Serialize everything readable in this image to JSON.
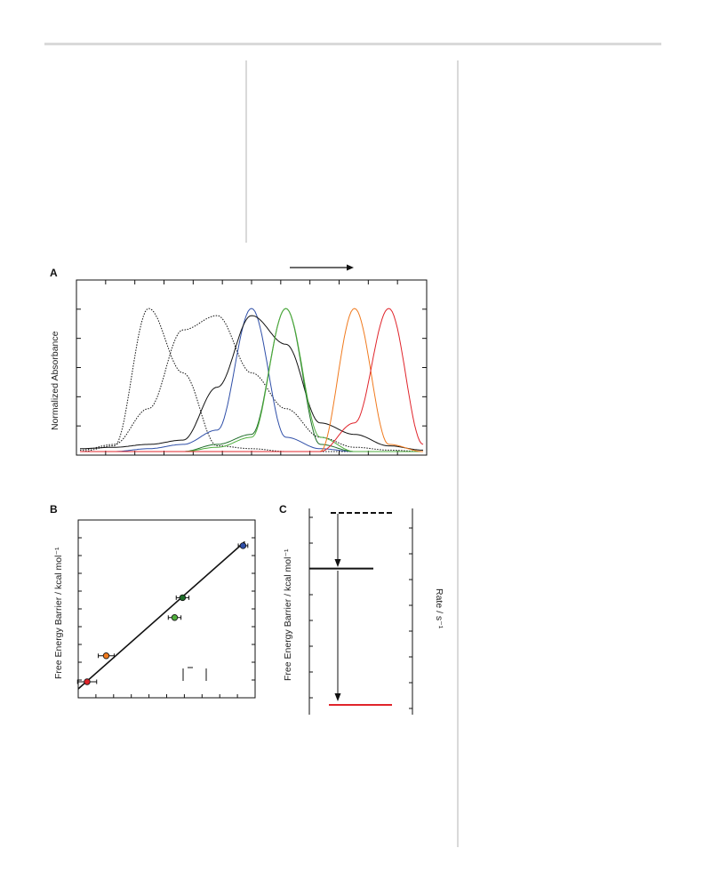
{
  "panels": {
    "A": {
      "letter": "A",
      "ylabel": "Normalized Absorbance"
    },
    "B": {
      "letter": "B",
      "ylabel": "Free Energy Barrier / kcal mol⁻¹"
    },
    "C": {
      "letter": "C",
      "ylabel_left": "Free Energy Barrier / kcal mol⁻¹",
      "ylabel_right": "Rate / s⁻¹"
    }
  },
  "colors": {
    "black": "#111111",
    "blue": "#2f4fa8",
    "dark_green": "#1f6e2a",
    "green": "#4fae3c",
    "orange": "#f07a1e",
    "red": "#e0242b",
    "rule": "#d9d9d9"
  },
  "chart_data": [
    {
      "panel": "A",
      "type": "line",
      "title": "",
      "xlabel": "",
      "ylabel": "Normalized Absorbance",
      "ylim": [
        0,
        1
      ],
      "x": [
        0,
        10,
        20,
        30,
        40,
        50,
        60,
        70,
        80,
        90,
        100
      ],
      "series": [
        {
          "color": "#111111",
          "style": "dotted",
          "values": [
            0.0,
            0.04,
            1.0,
            0.55,
            0.04,
            0.02,
            0.0,
            0.0,
            0.0,
            0.0,
            0.0
          ]
        },
        {
          "color": "#111111",
          "style": "dotted",
          "values": [
            0.01,
            0.05,
            0.3,
            0.85,
            0.95,
            0.55,
            0.3,
            0.1,
            0.03,
            0.01,
            0.0
          ]
        },
        {
          "color": "#2f4fa8",
          "style": "solid",
          "values": [
            0.0,
            0.0,
            0.02,
            0.05,
            0.15,
            1.0,
            0.1,
            0.02,
            0.0,
            0.0,
            0.0
          ]
        },
        {
          "color": "#111111",
          "style": "solid",
          "values": [
            0.02,
            0.03,
            0.05,
            0.08,
            0.45,
            0.95,
            0.75,
            0.2,
            0.12,
            0.04,
            0.01
          ]
        },
        {
          "color": "#1f6e2a",
          "style": "solid",
          "values": [
            0.0,
            0.0,
            0.0,
            0.0,
            0.05,
            0.12,
            1.0,
            0.05,
            0.0,
            0.0,
            0.0
          ]
        },
        {
          "color": "#4fae3c",
          "style": "solid",
          "values": [
            0.0,
            0.0,
            0.0,
            0.0,
            0.03,
            0.1,
            1.0,
            0.1,
            0.0,
            0.0,
            0.0
          ]
        },
        {
          "color": "#f07a1e",
          "style": "solid",
          "values": [
            0.0,
            0.0,
            0.0,
            0.0,
            0.0,
            0.0,
            0.0,
            0.0,
            1.0,
            0.05,
            0.0
          ]
        },
        {
          "color": "#e0242b",
          "style": "solid",
          "values": [
            0.0,
            0.0,
            0.0,
            0.0,
            0.0,
            0.0,
            0.0,
            0.0,
            0.2,
            1.0,
            0.05
          ]
        }
      ]
    },
    {
      "panel": "B",
      "type": "scatter",
      "title": "",
      "xlabel": "",
      "ylabel": "Free Energy Barrier / kcal mol⁻¹",
      "points": [
        {
          "color": "#e0242b",
          "x": 0.0,
          "y": 0.0,
          "xerr": 0.06
        },
        {
          "color": "#f07a1e",
          "x": 0.12,
          "y": 0.17,
          "xerr": 0.05
        },
        {
          "color": "#4fae3c",
          "x": 0.55,
          "y": 0.42,
          "xerr": 0.04
        },
        {
          "color": "#1f6e2a",
          "x": 0.6,
          "y": 0.55,
          "xerr": 0.04
        },
        {
          "color": "#2f4fa8",
          "x": 0.98,
          "y": 0.89,
          "xerr": 0.03
        }
      ],
      "fit": {
        "x": [
          0.0,
          0.98
        ],
        "y": [
          0.0,
          0.87
        ]
      }
    },
    {
      "panel": "C",
      "type": "line",
      "title": "",
      "xlabel": "",
      "ylabel": "Free Energy Barrier / kcal mol⁻¹",
      "levels": [
        {
          "color": "#111111",
          "style": "dashed",
          "y": 1.0
        },
        {
          "color": "#111111",
          "style": "solid",
          "y": 0.71
        },
        {
          "color": "#e0242b",
          "style": "solid",
          "y": 0.0
        }
      ]
    }
  ]
}
